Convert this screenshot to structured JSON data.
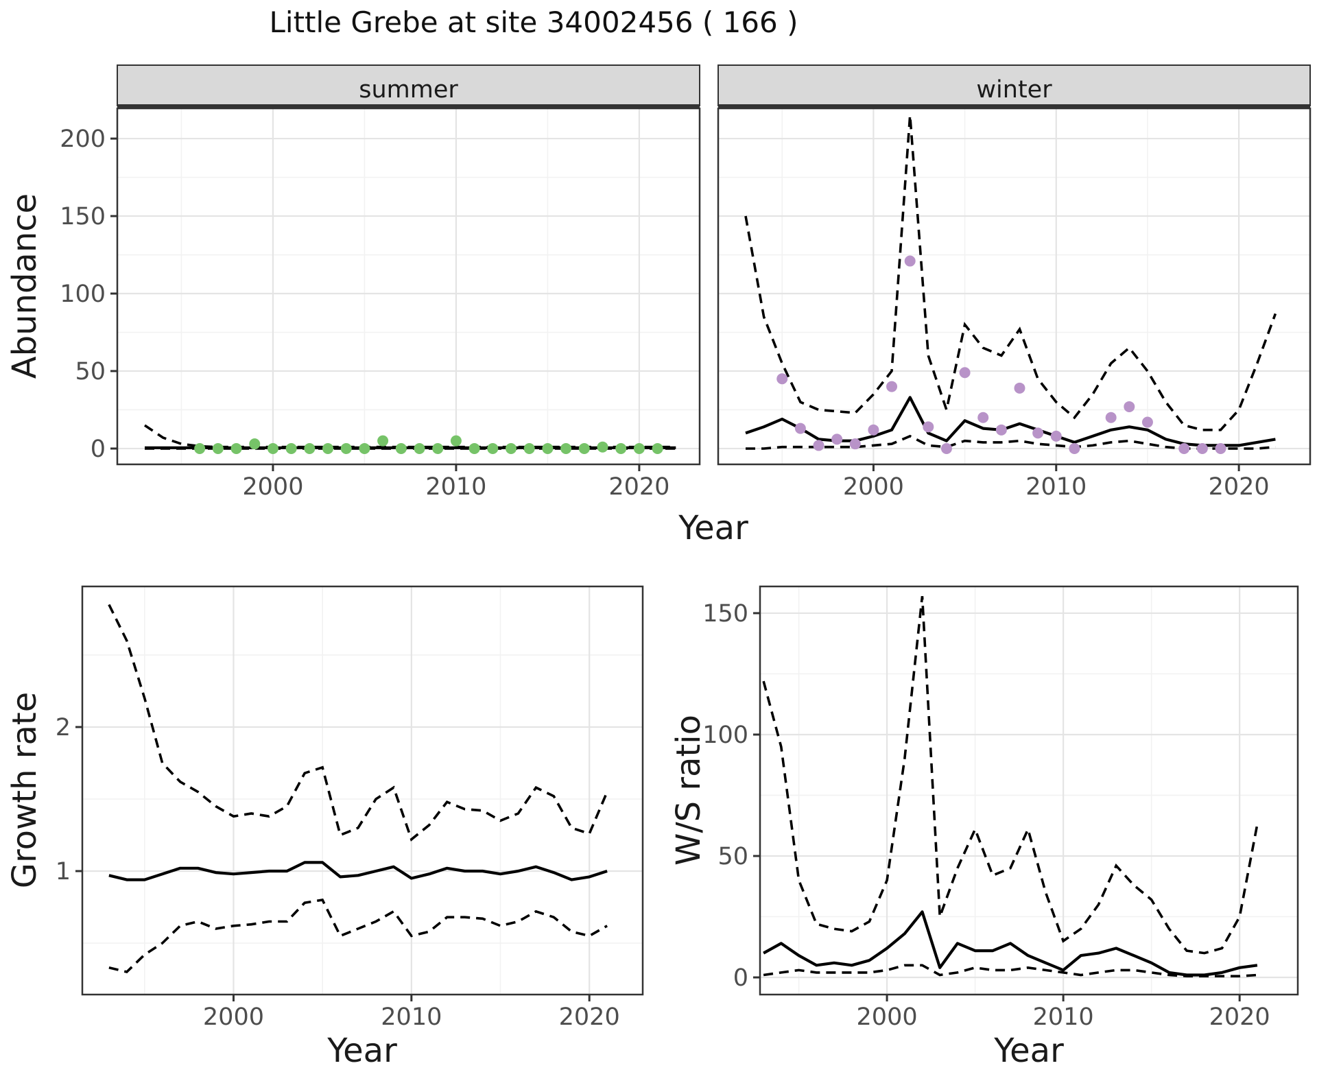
{
  "title": "Little Grebe at site 34002456 ( 166 )",
  "colors": {
    "summer_points": "#76c368",
    "winter_points": "#b893c8",
    "fit_line": "#000000",
    "ci_line": "#000000",
    "panel_border": "#333333",
    "strip_bg": "#d9d9d9",
    "grid_major": "#e4e4e4",
    "grid_minor": "#f2f2f2",
    "tick_text": "#4d4d4d",
    "axis_title_text": "#1a1a1a"
  },
  "axes": {
    "shared_x_label": "Year",
    "top_y_label": "Abundance",
    "growth_y_label": "Growth rate",
    "ws_y_label": "W/S ratio"
  },
  "chart_data": [
    {
      "id": "summer",
      "type": "line+scatter",
      "facet_label": "summer",
      "ylabel": "Abundance",
      "xlabel": "Year",
      "x_ticks": [
        2000,
        2010,
        2020
      ],
      "y_ticks": [
        0,
        50,
        100,
        150,
        200
      ],
      "ylim": [
        -10,
        220
      ],
      "start_year": 1993,
      "fit": [
        0.5,
        0.5,
        0.5,
        0.5,
        0.5,
        0.5,
        0.5,
        0.5,
        0.5,
        0.5,
        0.5,
        0.5,
        0.5,
        0.5,
        0.5,
        0.5,
        0.5,
        0.5,
        0.5,
        0.5,
        0.5,
        0.5,
        0.5,
        0.5,
        0.5,
        0.5,
        0.5,
        0.5,
        0.5,
        0.5
      ],
      "upper_ci": [
        15,
        7,
        3,
        1.5,
        1,
        1,
        1,
        1,
        1,
        1,
        1,
        1,
        1,
        1,
        1,
        1,
        1,
        1,
        1,
        1,
        1,
        1,
        1,
        1,
        1,
        1,
        1,
        1,
        1,
        1
      ],
      "lower_ci": [
        0,
        0,
        0,
        0,
        0,
        0,
        0,
        0,
        0,
        0,
        0,
        0,
        0,
        0,
        0,
        0,
        0,
        0,
        0,
        0,
        0,
        0,
        0,
        0,
        0,
        0,
        0,
        0,
        0,
        0
      ],
      "points": [
        [
          1996,
          0
        ],
        [
          1997,
          0
        ],
        [
          1998,
          0
        ],
        [
          1999,
          3
        ],
        [
          2000,
          0
        ],
        [
          2001,
          0
        ],
        [
          2002,
          0
        ],
        [
          2003,
          0
        ],
        [
          2004,
          0
        ],
        [
          2005,
          0
        ],
        [
          2006,
          5
        ],
        [
          2007,
          0
        ],
        [
          2008,
          0
        ],
        [
          2009,
          0
        ],
        [
          2010,
          5
        ],
        [
          2011,
          0
        ],
        [
          2012,
          0
        ],
        [
          2013,
          0
        ],
        [
          2014,
          0
        ],
        [
          2015,
          0
        ],
        [
          2016,
          0
        ],
        [
          2017,
          0
        ],
        [
          2018,
          1
        ],
        [
          2019,
          0
        ],
        [
          2020,
          0
        ],
        [
          2021,
          0
        ]
      ],
      "point_color": "summer_points"
    },
    {
      "id": "winter",
      "type": "line+scatter",
      "facet_label": "winter",
      "ylabel": "",
      "xlabel": "Year",
      "x_ticks": [
        2000,
        2010,
        2020
      ],
      "y_ticks": [
        0,
        50,
        100,
        150,
        200
      ],
      "ylim": [
        -10,
        220
      ],
      "start_year": 1993,
      "fit": [
        10,
        14,
        19,
        13,
        6,
        5,
        5,
        8,
        12,
        33,
        10,
        5,
        18,
        13,
        12,
        16,
        12,
        8,
        4,
        8,
        12,
        14,
        12,
        6,
        3,
        2,
        2,
        2,
        4,
        6
      ],
      "upper_ci": [
        150,
        85,
        55,
        30,
        25,
        24,
        23,
        35,
        50,
        215,
        60,
        25,
        80,
        65,
        60,
        77,
        45,
        30,
        20,
        35,
        55,
        65,
        50,
        30,
        15,
        12,
        12,
        25,
        55,
        87
      ],
      "lower_ci": [
        0,
        0,
        1,
        1,
        1,
        1,
        1,
        2,
        3,
        8,
        2,
        1,
        5,
        4,
        4,
        5,
        3,
        2,
        1,
        2,
        4,
        5,
        3,
        1,
        0,
        0,
        0,
        0,
        0,
        1
      ],
      "points": [
        [
          1995,
          45
        ],
        [
          1996,
          13
        ],
        [
          1997,
          2
        ],
        [
          1998,
          6
        ],
        [
          1999,
          3
        ],
        [
          2000,
          12
        ],
        [
          2001,
          40
        ],
        [
          2002,
          121
        ],
        [
          2003,
          14
        ],
        [
          2004,
          0
        ],
        [
          2005,
          49
        ],
        [
          2006,
          20
        ],
        [
          2007,
          12
        ],
        [
          2008,
          39
        ],
        [
          2009,
          10
        ],
        [
          2010,
          8
        ],
        [
          2011,
          0
        ],
        [
          2013,
          20
        ],
        [
          2014,
          27
        ],
        [
          2015,
          17
        ],
        [
          2017,
          0
        ],
        [
          2018,
          0
        ],
        [
          2019,
          0
        ]
      ],
      "point_color": "winter_points"
    },
    {
      "id": "growth",
      "type": "line",
      "facet_label": "",
      "ylabel": "Growth rate",
      "xlabel": "Year",
      "x_ticks": [
        2000,
        2010,
        2020
      ],
      "y_ticks": [
        1,
        2
      ],
      "ylim": [
        0.14,
        2.98
      ],
      "start_year": 1993,
      "fit": [
        0.97,
        0.94,
        0.94,
        0.98,
        1.02,
        1.02,
        0.99,
        0.98,
        0.99,
        1.0,
        1.0,
        1.06,
        1.06,
        0.96,
        0.97,
        1.0,
        1.03,
        0.95,
        0.98,
        1.02,
        1.0,
        1.0,
        0.98,
        1.0,
        1.03,
        0.99,
        0.94,
        0.96,
        1.0
      ],
      "upper_ci": [
        2.85,
        2.6,
        2.2,
        1.75,
        1.62,
        1.55,
        1.45,
        1.38,
        1.4,
        1.38,
        1.45,
        1.68,
        1.72,
        1.25,
        1.3,
        1.5,
        1.58,
        1.22,
        1.32,
        1.48,
        1.43,
        1.42,
        1.35,
        1.4,
        1.58,
        1.52,
        1.3,
        1.26,
        1.55
      ],
      "lower_ci": [
        0.33,
        0.3,
        0.42,
        0.5,
        0.62,
        0.65,
        0.6,
        0.62,
        0.63,
        0.65,
        0.65,
        0.78,
        0.8,
        0.55,
        0.6,
        0.65,
        0.72,
        0.55,
        0.58,
        0.68,
        0.68,
        0.67,
        0.62,
        0.65,
        0.72,
        0.68,
        0.58,
        0.55,
        0.62
      ],
      "points": [],
      "point_color": ""
    },
    {
      "id": "ws",
      "type": "line",
      "facet_label": "",
      "ylabel": "W/S ratio",
      "xlabel": "Year",
      "x_ticks": [
        2000,
        2010,
        2020
      ],
      "y_ticks": [
        0,
        50,
        100,
        150
      ],
      "ylim": [
        -7,
        161
      ],
      "start_year": 1993,
      "fit": [
        10,
        14,
        9,
        5,
        6,
        5,
        7,
        12,
        18,
        27,
        4,
        14,
        11,
        11,
        14,
        9,
        6,
        3,
        9,
        10,
        12,
        9,
        6,
        2,
        1,
        1,
        2,
        4,
        5
      ],
      "upper_ci": [
        122,
        95,
        40,
        22,
        20,
        19,
        23,
        40,
        90,
        157,
        25,
        45,
        61,
        42,
        45,
        61,
        35,
        15,
        20,
        30,
        46,
        38,
        32,
        20,
        11,
        10,
        12,
        25,
        63
      ],
      "lower_ci": [
        1,
        2,
        3,
        2,
        2,
        2,
        2,
        3,
        5,
        5,
        1,
        2,
        4,
        3,
        3,
        4,
        3,
        2,
        1,
        2,
        3,
        3,
        2,
        1,
        0.5,
        0.5,
        0.5,
        0.5,
        1
      ],
      "points": [],
      "point_color": ""
    }
  ]
}
